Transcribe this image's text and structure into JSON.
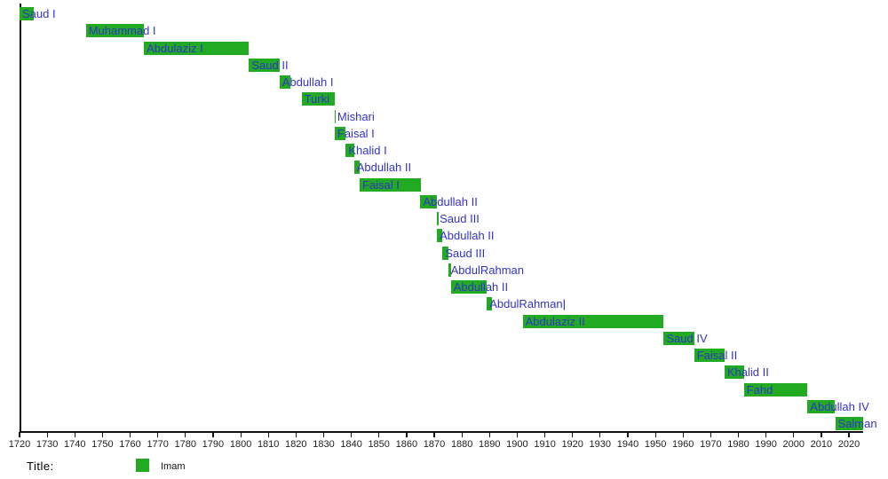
{
  "colors": {
    "bar_green": "#22aa22",
    "label_blue": "#3333cc",
    "axis_black": "#111111"
  },
  "chart_data": {
    "type": "timeline-gantt",
    "legend_title": "Title:",
    "legend": [
      {
        "label": "Imam",
        "color": "#22aa22"
      }
    ],
    "x_axis": {
      "min": 1720,
      "max": 2025,
      "tick_step": 10,
      "ticks": [
        1720,
        1730,
        1740,
        1750,
        1760,
        1770,
        1780,
        1790,
        1800,
        1810,
        1820,
        1830,
        1840,
        1850,
        1860,
        1870,
        1880,
        1890,
        1900,
        1910,
        1920,
        1930,
        1940,
        1950,
        1960,
        1970,
        1980,
        1990,
        2000,
        2010,
        2020
      ],
      "grid": false
    },
    "bars": [
      {
        "name": "Saud I",
        "start": 1720,
        "end": 1725
      },
      {
        "name": "Muhammad I",
        "start": 1744,
        "end": 1765
      },
      {
        "name": "Abdulaziz I",
        "start": 1765,
        "end": 1803
      },
      {
        "name": "Saud II",
        "start": 1803,
        "end": 1814
      },
      {
        "name": "Abdullah I",
        "start": 1814,
        "end": 1818
      },
      {
        "name": "Turki",
        "start": 1822,
        "end": 1834
      },
      {
        "name": "Mishari",
        "start": 1834,
        "end": 1834
      },
      {
        "name": "Faisal I",
        "start": 1834,
        "end": 1838
      },
      {
        "name": "Khalid I",
        "start": 1838,
        "end": 1841
      },
      {
        "name": "Abdullah II",
        "start": 1841,
        "end": 1843
      },
      {
        "name": "Faisal I",
        "start": 1843,
        "end": 1865
      },
      {
        "name": "Abdullah II",
        "start": 1865,
        "end": 1871
      },
      {
        "name": "Saud III",
        "start": 1871,
        "end": 1871
      },
      {
        "name": "Abdullah II",
        "start": 1871,
        "end": 1873
      },
      {
        "name": "Saud III",
        "start": 1873,
        "end": 1875
      },
      {
        "name": "AbdulRahman",
        "start": 1875,
        "end": 1876
      },
      {
        "name": "Abdullah II",
        "start": 1876,
        "end": 1889
      },
      {
        "name": "AbdulRahman",
        "start": 1889,
        "end": 1891,
        "suffix": "|"
      },
      {
        "name": "Abdulaziz II",
        "start": 1902,
        "end": 1953
      },
      {
        "name": "Saud IV",
        "start": 1953,
        "end": 1964
      },
      {
        "name": "Faisal II",
        "start": 1964,
        "end": 1975
      },
      {
        "name": "Khalid II",
        "start": 1975,
        "end": 1982
      },
      {
        "name": "Fahd",
        "start": 1982,
        "end": 2005
      },
      {
        "name": "Abdullah IV",
        "start": 2005,
        "end": 2015
      },
      {
        "name": "Salman",
        "start": 2015,
        "end": 2025
      }
    ]
  }
}
